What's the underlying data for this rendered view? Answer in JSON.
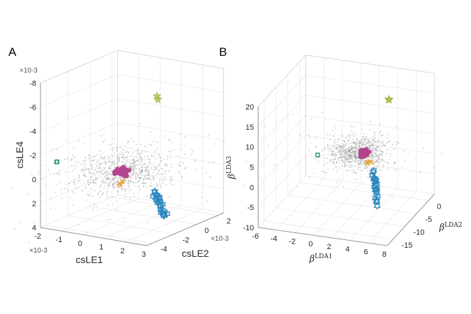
{
  "chart_data": [
    {
      "type": "scatter",
      "panel_label": "A",
      "title": "",
      "xlabel": "csLE1",
      "ylabel": "csLE2",
      "zlabel": "csLE4",
      "x_multiplier": "×10-3",
      "y_multiplier": "×10-3",
      "z_multiplier": "×10-3",
      "xlim": [
        -2,
        3
      ],
      "ylim": [
        -4.5,
        2.5
      ],
      "zlim": [
        -8,
        4
      ],
      "z_reversed": true,
      "xticks": [
        -2,
        -1,
        0,
        1,
        2,
        3
      ],
      "yticks": [
        -4,
        -2,
        0,
        2
      ],
      "zticks": [
        -8,
        -6,
        -4,
        -2,
        0,
        2,
        4
      ],
      "grid": true,
      "clusters": [
        {
          "name": "background",
          "marker": "dot",
          "color": "#8c8c8c",
          "n": 900,
          "center": [
            -0.5,
            0,
            0.6
          ],
          "spread": [
            0.9,
            1.6,
            0.7
          ]
        },
        {
          "name": "magenta",
          "marker": "circle",
          "color": "#b5448e",
          "n": 60,
          "center": [
            -0.49,
            0,
            0.65
          ],
          "spread": [
            0.12,
            0.2,
            0.12
          ]
        },
        {
          "name": "orange",
          "marker": "x",
          "color": "#e5a437",
          "n": 4,
          "center": [
            -0.55,
            0,
            1.6
          ],
          "spread": [
            0.05,
            0.05,
            0.1
          ]
        },
        {
          "name": "blue",
          "marker": "hexagram",
          "color": "#2b87bd",
          "n": 24,
          "from": [
            2.03,
            -2,
            0.82
          ],
          "to": [
            2.59,
            -2,
            2.65
          ],
          "spread": [
            0.06,
            0.1,
            0.15
          ]
        },
        {
          "name": "green",
          "marker": "square",
          "color": "#2f9a6e",
          "n": 2,
          "center": [
            -1.54,
            -4,
            -1.4
          ],
          "spread": [
            0.08,
            0.05,
            0.15
          ]
        },
        {
          "name": "yellowgreen",
          "marker": "star",
          "color": "#a9b63f",
          "n": 2,
          "center": [
            0.15,
            2,
            -4.8
          ],
          "spread": [
            0.02,
            0.02,
            0.15
          ]
        }
      ]
    },
    {
      "type": "scatter",
      "panel_label": "B",
      "title": "",
      "xlabel_base": "β",
      "xlabel_sup": "LDA1",
      "ylabel_base": "β",
      "ylabel_sup": "LDA2",
      "zlabel_base": "β",
      "zlabel_sup": "LDA3",
      "xlim": [
        -6,
        8
      ],
      "ylim": [
        -17.5,
        2.5
      ],
      "zlim": [
        -10,
        20
      ],
      "z_reversed": false,
      "xticks": [
        -6,
        -4,
        -2,
        0,
        2,
        4,
        6,
        8
      ],
      "yticks": [
        -15,
        -10,
        -5,
        0
      ],
      "zticks": [
        -10,
        -5,
        0,
        5,
        10,
        15,
        20
      ],
      "grid": true,
      "clusters": [
        {
          "name": "background",
          "marker": "dot",
          "color": "#8c8c8c",
          "n": 900,
          "center": [
            1.6,
            -5,
            3.0
          ],
          "spread": [
            1.4,
            2.0,
            1.3
          ]
        },
        {
          "name": "magenta",
          "marker": "circle",
          "color": "#b5448e",
          "n": 60,
          "center": [
            2.3,
            -5,
            3.05
          ],
          "spread": [
            0.2,
            0.4,
            0.3
          ]
        },
        {
          "name": "orange",
          "marker": "x",
          "color": "#e5a437",
          "n": 4,
          "center": [
            2.8,
            -5,
            1.1
          ],
          "spread": [
            0.15,
            0.2,
            0.2
          ]
        },
        {
          "name": "blue",
          "marker": "hexagram",
          "color": "#2b87bd",
          "n": 24,
          "from": [
            3.3,
            -5,
            -1.0
          ],
          "to": [
            3.7,
            -5,
            -8.7
          ],
          "spread": [
            0.1,
            0.3,
            0.3
          ]
        },
        {
          "name": "green",
          "marker": "square",
          "color": "#2f9a6e",
          "n": 2,
          "center": [
            -2.77,
            -5,
            1.05
          ],
          "spread": [
            0.02,
            0.05,
            0.05
          ]
        },
        {
          "name": "yellowgreen",
          "marker": "star",
          "color": "#a9b63f",
          "n": 2,
          "center": [
            5.0,
            -5,
            17.25
          ],
          "spread": [
            0.02,
            0.02,
            0.1
          ]
        }
      ]
    }
  ]
}
